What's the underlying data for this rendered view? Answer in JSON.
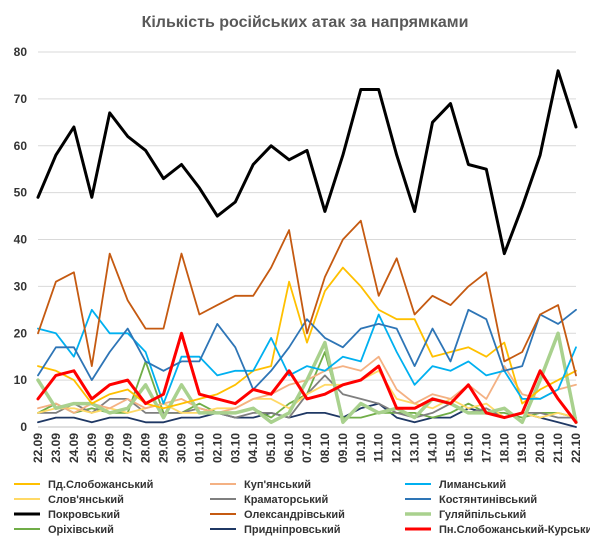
{
  "chart_data": {
    "type": "line",
    "title": "Кількість російських атак за напрямками",
    "xlabel": "",
    "ylabel": "",
    "ylim": [
      0,
      80
    ],
    "yticks": [
      0,
      10,
      20,
      30,
      40,
      50,
      60,
      70,
      80
    ],
    "grid": true,
    "legend_position": "bottom",
    "categories": [
      "22.09",
      "23.09",
      "24.09",
      "25.09",
      "26.09",
      "27.09",
      "28.09",
      "29.09",
      "30.09",
      "01.10",
      "02.10",
      "03.10",
      "04.10",
      "05.10",
      "06.10",
      "07.10",
      "08.10",
      "09.10",
      "10.10",
      "11.10",
      "12.10",
      "13.10",
      "14.10",
      "15.10",
      "16.10",
      "17.10",
      "18.10",
      "19.10",
      "20.10",
      "21.10",
      "22.10"
    ],
    "series": [
      {
        "name": "Пд.Слобожанський",
        "color": "#ffc000",
        "width": 1.8,
        "values": [
          13,
          12,
          10,
          5,
          7,
          8,
          5,
          4,
          5,
          6,
          7,
          9,
          12,
          13,
          31,
          18,
          29,
          34,
          30,
          25,
          23,
          23,
          15,
          16,
          17,
          15,
          18,
          5,
          8,
          10,
          12
        ]
      },
      {
        "name": "Куп'янський",
        "color": "#f4b183",
        "width": 1.8,
        "values": [
          4,
          5,
          3,
          5,
          4,
          6,
          4,
          5,
          6,
          4,
          3,
          4,
          6,
          7,
          9,
          10,
          12,
          13,
          12,
          15,
          8,
          5,
          7,
          6,
          9,
          6,
          13,
          7,
          6,
          8,
          9
        ]
      },
      {
        "name": "Лиманський",
        "color": "#00b0f0",
        "width": 1.8,
        "values": [
          21,
          20,
          15,
          25,
          20,
          20,
          16,
          5,
          15,
          15,
          11,
          12,
          12,
          19,
          11,
          13,
          12,
          15,
          14,
          24,
          16,
          9,
          13,
          12,
          14,
          11,
          12,
          6,
          6,
          8,
          17
        ]
      },
      {
        "name": "Краматорський",
        "color": "#7f7f7f",
        "width": 1.8,
        "values": [
          3,
          3,
          5,
          3,
          6,
          6,
          3,
          3,
          3,
          4,
          3,
          2,
          3,
          3,
          2,
          7,
          11,
          7,
          6,
          5,
          3,
          2,
          3,
          5,
          3,
          4,
          2,
          3,
          3,
          2,
          2
        ]
      },
      {
        "name": "Слов'янський",
        "color": "#ffd966",
        "width": 1.8,
        "values": [
          3,
          4,
          4,
          3,
          4,
          3,
          4,
          5,
          3,
          3,
          4,
          4,
          6,
          6,
          4,
          7,
          9,
          9,
          10,
          12,
          6,
          5,
          4,
          6,
          4,
          5,
          2,
          3,
          2,
          3,
          2
        ]
      },
      {
        "name": "Костянтинівський",
        "color": "#2e75b6",
        "width": 1.8,
        "values": [
          11,
          17,
          17,
          10,
          16,
          21,
          14,
          12,
          14,
          14,
          22,
          17,
          8,
          12,
          17,
          23,
          19,
          17,
          21,
          22,
          21,
          13,
          21,
          14,
          25,
          23,
          12,
          13,
          24,
          22,
          25
        ]
      },
      {
        "name": "Покровський",
        "color": "#000000",
        "width": 3,
        "values": [
          49,
          58,
          64,
          49,
          67,
          62,
          59,
          53,
          56,
          51,
          45,
          48,
          56,
          60,
          57,
          59,
          46,
          58,
          72,
          72,
          58,
          46,
          65,
          69,
          56,
          55,
          37,
          47,
          58,
          76,
          64
        ]
      },
      {
        "name": "Олександрівський",
        "color": "#c55a11",
        "width": 1.8,
        "values": [
          20,
          31,
          33,
          13,
          37,
          27,
          21,
          21,
          37,
          24,
          26,
          28,
          28,
          34,
          42,
          20,
          32,
          40,
          44,
          28,
          36,
          24,
          28,
          26,
          30,
          33,
          14,
          16,
          24,
          26,
          11
        ]
      },
      {
        "name": "Гуляйпільський",
        "color": "#a9d18e",
        "width": 3.5,
        "values": [
          10,
          4,
          5,
          5,
          3,
          4,
          9,
          2,
          9,
          3,
          3,
          3,
          4,
          1,
          3,
          10,
          18,
          1,
          5,
          3,
          4,
          2,
          6,
          5,
          3,
          3,
          4,
          1,
          10,
          20,
          1
        ]
      },
      {
        "name": "Пн.Слобожанський-Курський",
        "color": "#ff0000",
        "width": 3,
        "values": [
          6,
          11,
          12,
          6,
          9,
          10,
          5,
          7,
          20,
          7,
          6,
          5,
          8,
          7,
          12,
          6,
          7,
          9,
          10,
          13,
          4,
          4,
          6,
          5,
          9,
          3,
          2,
          3,
          12,
          6,
          1
        ]
      },
      {
        "name": "Оріхівський",
        "color": "#70ad47",
        "width": 1.8,
        "values": [
          3,
          5,
          3,
          4,
          3,
          3,
          14,
          3,
          3,
          5,
          3,
          3,
          4,
          2,
          5,
          7,
          16,
          2,
          2,
          3,
          3,
          3,
          2,
          3,
          5,
          3,
          3,
          2,
          3,
          3,
          2
        ]
      },
      {
        "name": "Придніпровський",
        "color": "#1f3864",
        "width": 1.8,
        "values": [
          1,
          2,
          2,
          1,
          2,
          2,
          1,
          1,
          2,
          2,
          3,
          2,
          2,
          3,
          2,
          3,
          3,
          2,
          4,
          5,
          2,
          1,
          2,
          2,
          4,
          3,
          2,
          3,
          2,
          1,
          0
        ]
      }
    ],
    "legend_order": [
      "Пд.Слобожанський",
      "Куп'янський",
      "Лиманський",
      "Слов'янський",
      "Краматорський",
      "Костянтинівський",
      "Покровський",
      "Олександрівський",
      "Гуляйпільський",
      "Оріхівський",
      "Придніпровський",
      "Пн.Слобожанський-Курський"
    ]
  }
}
